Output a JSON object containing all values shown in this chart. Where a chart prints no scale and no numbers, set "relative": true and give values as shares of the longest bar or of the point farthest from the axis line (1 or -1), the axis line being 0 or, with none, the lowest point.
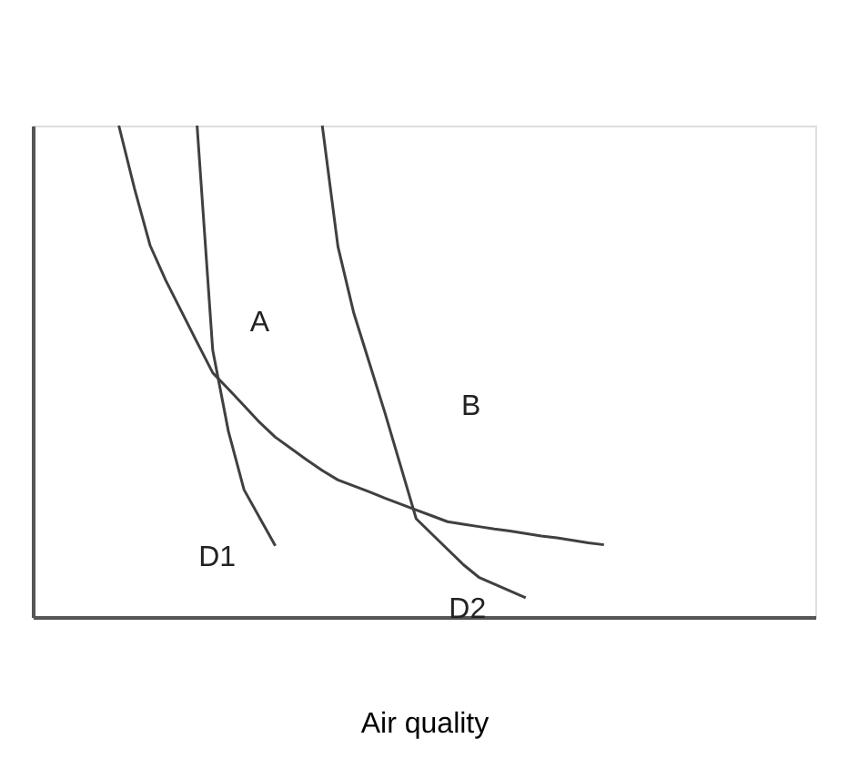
{
  "chart_data": {
    "type": "line",
    "relative": true,
    "xlabel": "Air quality",
    "categories": [
      null,
      null,
      null,
      null,
      null,
      null,
      null,
      null,
      null,
      null,
      null,
      null,
      null,
      null,
      null,
      null,
      null,
      null,
      null,
      null,
      null,
      null,
      null,
      null,
      null,
      null,
      null,
      null,
      null,
      null,
      null,
      null,
      null,
      null,
      null,
      null,
      null,
      null,
      null,
      null,
      null,
      null,
      null,
      null,
      null,
      null,
      null,
      null,
      null,
      null
    ],
    "tick_labels": false,
    "grid": false,
    "legend": false,
    "marker": "none",
    "line_style": "solid",
    "series": [
      {
        "color": "#404040",
        "values": [
          null,
          null,
          null,
          null,
          null,
          1.0,
          0.872,
          0.756,
          0.685,
          0.622,
          0.559,
          0.497,
          0.464,
          0.43,
          0.396,
          0.366,
          0.343,
          0.32,
          0.298,
          0.279,
          0.267,
          0.255,
          0.242,
          0.23,
          0.218,
          0.206,
          0.194,
          0.189,
          0.184,
          0.179,
          0.175,
          0.17,
          0.165,
          0.161,
          0.156,
          0.151,
          0.147,
          null,
          null,
          null,
          null,
          null,
          null,
          null,
          null,
          null,
          null,
          null,
          null,
          null
        ]
      },
      {
        "name": "D1",
        "color": "#404040",
        "values": [
          null,
          null,
          null,
          null,
          null,
          null,
          null,
          null,
          null,
          null,
          1.0,
          0.543,
          0.378,
          0.259,
          0.202,
          0.145,
          null,
          null,
          null,
          null,
          null,
          null,
          null,
          null,
          null,
          null,
          null,
          null,
          null,
          null,
          null,
          null,
          null,
          null,
          null,
          null,
          null,
          null,
          null,
          null,
          null,
          null,
          null,
          null,
          null,
          null,
          null,
          null,
          null,
          null
        ]
      },
      {
        "name": "D2",
        "color": "#404040",
        "values": [
          null,
          null,
          null,
          null,
          null,
          null,
          null,
          null,
          null,
          null,
          null,
          null,
          null,
          null,
          null,
          null,
          null,
          null,
          1.0,
          0.754,
          0.62,
          0.518,
          0.416,
          0.308,
          0.2,
          0.169,
          0.138,
          0.107,
          0.081,
          0.067,
          0.053,
          0.039,
          null,
          null,
          null,
          null,
          null,
          null,
          null,
          null,
          null,
          null,
          null,
          null,
          null,
          null,
          null,
          null,
          null,
          null
        ]
      }
    ],
    "annotations": [
      "A",
      "B"
    ]
  }
}
